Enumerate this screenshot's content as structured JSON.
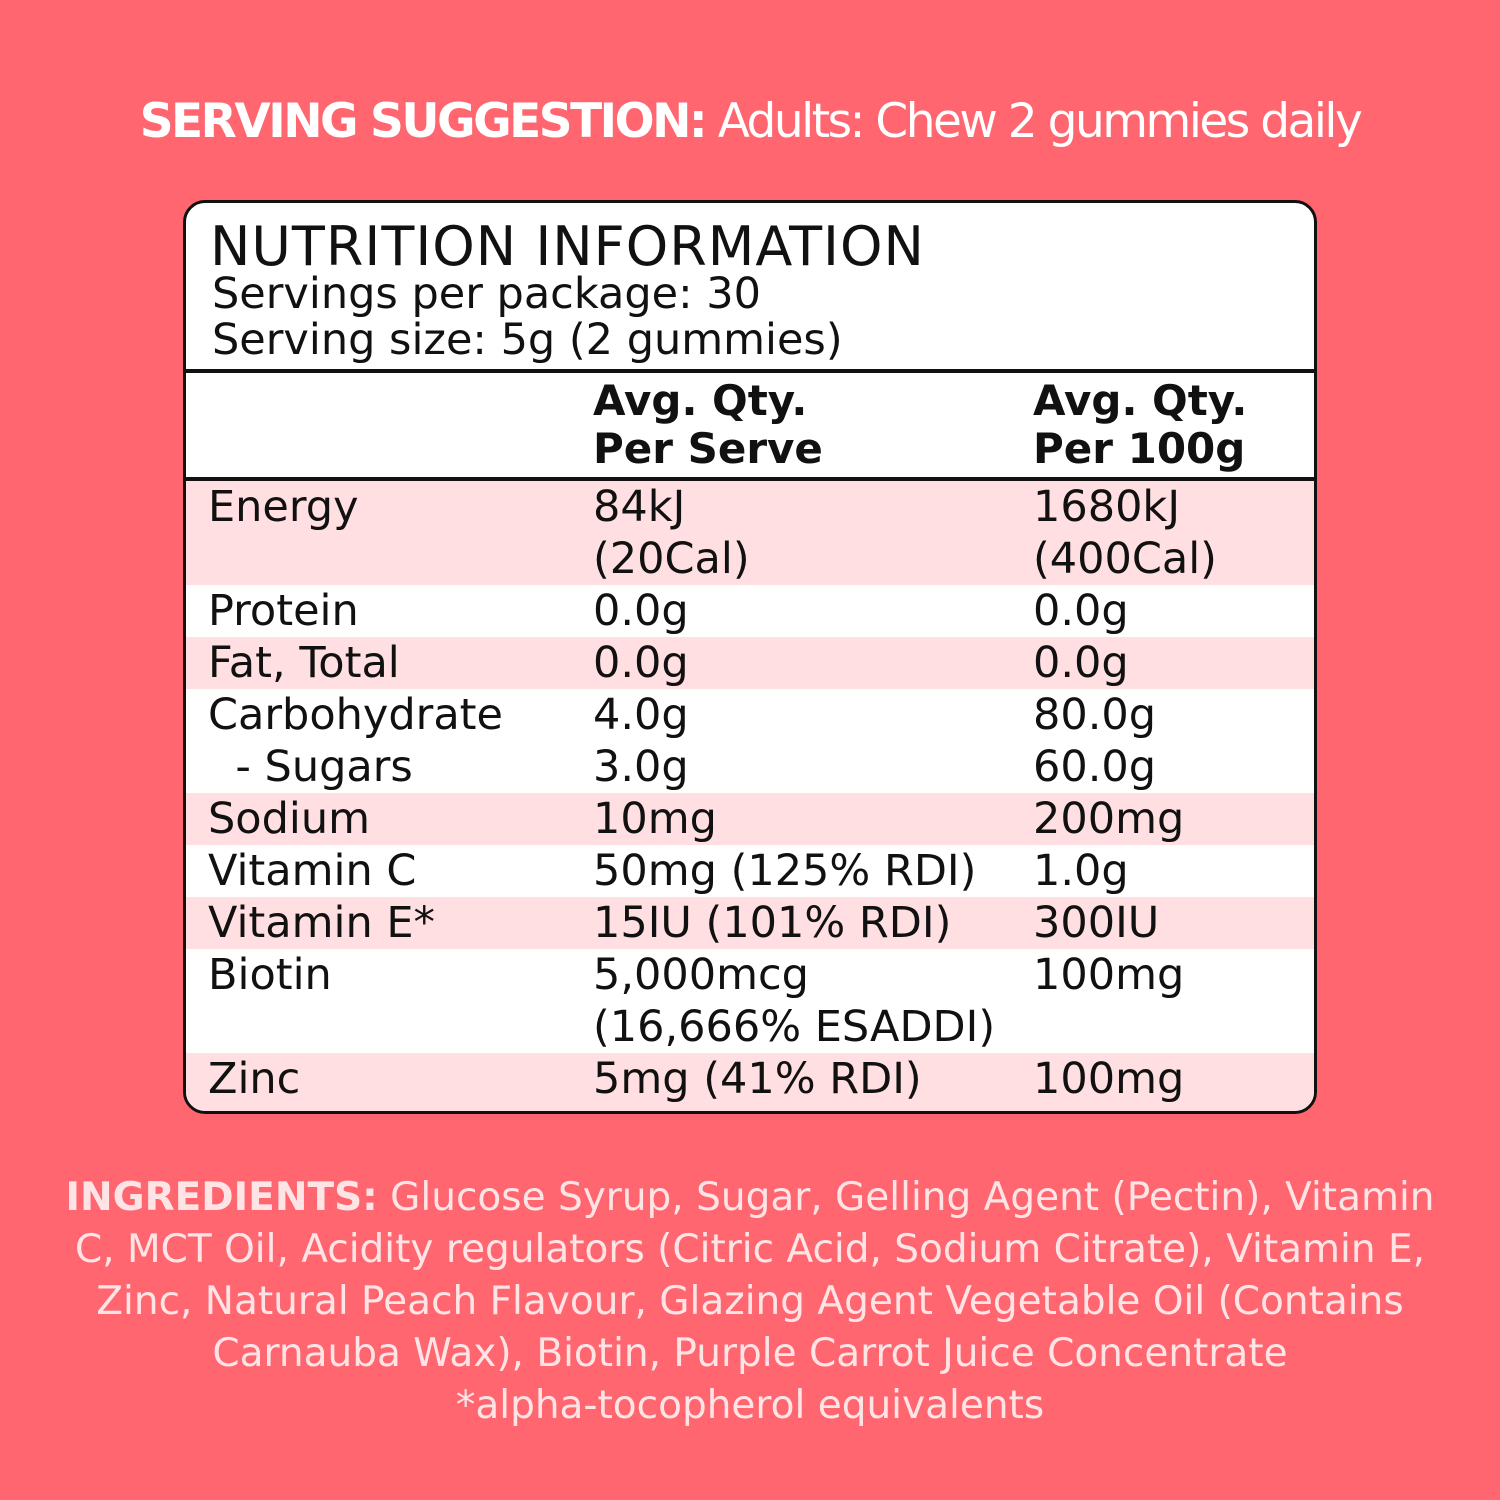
{
  "serving": {
    "label": "SERVING SUGGESTION:",
    "text": "Adults: Chew 2 gummies daily"
  },
  "nutrition": {
    "title": "NUTRITION INFORMATION",
    "servings_per_package": "Servings per package: 30",
    "serving_size": "Serving size: 5g (2 gummies)",
    "col_headers": [
      {
        "line1": "Avg. Qty.",
        "line2": "Per Serve"
      },
      {
        "line1": "Avg. Qty.",
        "line2": "Per 100g"
      }
    ],
    "rows": [
      {
        "name": "Energy",
        "serve": [
          "84kJ",
          "(20Cal)"
        ],
        "per100": [
          "1680kJ",
          "(400Cal)"
        ]
      },
      {
        "name": "Protein",
        "serve": [
          "0.0g"
        ],
        "per100": [
          "0.0g"
        ]
      },
      {
        "name": "Fat, Total",
        "serve": [
          "0.0g"
        ],
        "per100": [
          "0.0g"
        ]
      },
      {
        "name": "Carbohydrate",
        "serve": [
          "4.0g"
        ],
        "per100": [
          "80.0g"
        ]
      },
      {
        "name": "  - Sugars",
        "serve": [
          "3.0g"
        ],
        "per100": [
          "60.0g"
        ]
      },
      {
        "name": "Sodium",
        "serve": [
          "10mg"
        ],
        "per100": [
          "200mg"
        ]
      },
      {
        "name": "Vitamin C",
        "serve": [
          "50mg (125% RDI)"
        ],
        "per100": [
          "1.0g"
        ]
      },
      {
        "name": "Vitamin E*",
        "serve": [
          "15IU (101% RDI)"
        ],
        "per100": [
          "300IU"
        ]
      },
      {
        "name": "Biotin",
        "serve": [
          "5,000mcg",
          "(16,666% ESADDI)"
        ],
        "per100": [
          "100mg"
        ]
      },
      {
        "name": "Zinc",
        "serve": [
          "5mg (41% RDI)"
        ],
        "per100": [
          "100mg"
        ]
      }
    ]
  },
  "ingredients": {
    "label": "INGREDIENTS:",
    "text": "Glucose Syrup, Sugar, Gelling Agent (Pectin), Vitamin C, MCT Oil, Acidity regulators (Citric Acid, Sodium Citrate), Vitamin E, Zinc, Natural Peach Flavour, Glazing Agent Vegetable Oil (Contains Carnauba Wax), Biotin, Purple Carrot Juice Concentrate",
    "footnote": "*alpha-tocopherol equivalents"
  },
  "colors": {
    "background": "#ff6670",
    "row_shade": "#ffdfe1",
    "panel": "#ffffff",
    "ink": "#111111"
  }
}
